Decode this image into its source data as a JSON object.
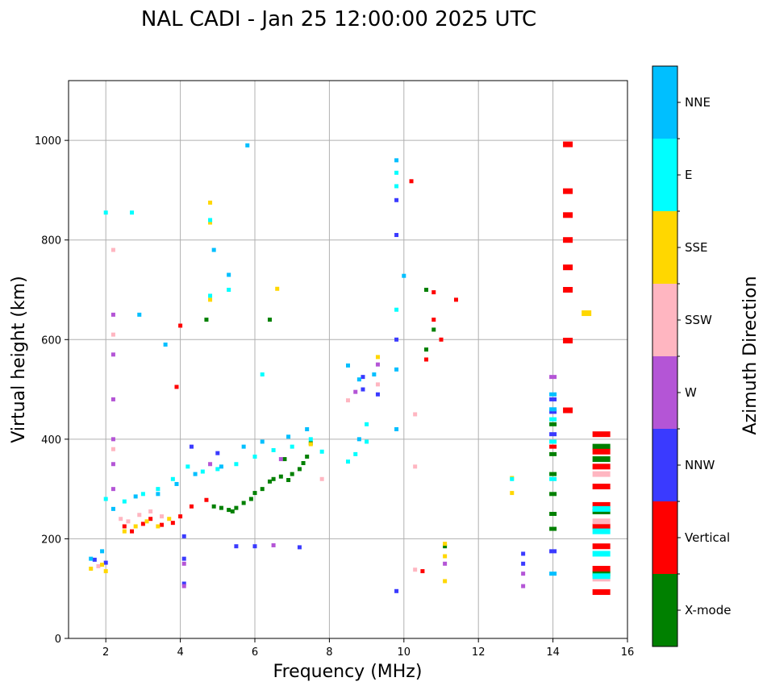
{
  "chart_data": {
    "type": "scatter",
    "title": "NAL CADI - Jan 25 12:00:00 2025 UTC",
    "xlabel": "Frequency (MHz)",
    "ylabel": "Virtual height (km)",
    "xlim": [
      1,
      16
    ],
    "ylim": [
      0,
      1120
    ],
    "xticks": [
      2,
      4,
      6,
      8,
      10,
      12,
      14,
      16
    ],
    "yticks": [
      0,
      200,
      400,
      600,
      800,
      1000
    ],
    "grid": true,
    "colorbar": {
      "label": "Azimuth Direction",
      "categories": [
        {
          "name": "X-mode",
          "color": "#008000"
        },
        {
          "name": "Vertical",
          "color": "#ff0000"
        },
        {
          "name": "NNW",
          "color": "#3a3aff"
        },
        {
          "name": "W",
          "color": "#b455d6"
        },
        {
          "name": "SSW",
          "color": "#ffb6c1"
        },
        {
          "name": "SSE",
          "color": "#ffd700"
        },
        {
          "name": "E",
          "color": "#00ffff"
        },
        {
          "name": "NNE",
          "color": "#00bfff"
        }
      ]
    },
    "series": [
      {
        "name": "X-mode",
        "points": [
          [
            4.9,
            265
          ],
          [
            5.1,
            262
          ],
          [
            5.3,
            258
          ],
          [
            5.5,
            262
          ],
          [
            5.7,
            272
          ],
          [
            5.9,
            280
          ],
          [
            6.0,
            292
          ],
          [
            6.2,
            300
          ],
          [
            6.4,
            315
          ],
          [
            6.5,
            320
          ],
          [
            6.7,
            325
          ],
          [
            6.9,
            318
          ],
          [
            7.0,
            330
          ],
          [
            7.2,
            340
          ],
          [
            7.4,
            365
          ],
          [
            7.5,
            392
          ],
          [
            7.3,
            352
          ],
          [
            6.8,
            360
          ],
          [
            5.4,
            255
          ],
          [
            14.0,
            220
          ],
          [
            14.0,
            250
          ],
          [
            14.0,
            290
          ],
          [
            14.0,
            330
          ],
          [
            14.0,
            370
          ],
          [
            14.0,
            430
          ],
          [
            15.3,
            385
          ],
          [
            15.3,
            360
          ],
          [
            15.3,
            255
          ],
          [
            15.3,
            130
          ],
          [
            11.1,
            185
          ],
          [
            10.8,
            620
          ],
          [
            10.6,
            580
          ],
          [
            4.7,
            640
          ],
          [
            6.4,
            640
          ],
          [
            10.6,
            700
          ]
        ]
      },
      {
        "name": "Vertical",
        "points": [
          [
            2.5,
            225
          ],
          [
            2.7,
            215
          ],
          [
            3.0,
            230
          ],
          [
            3.2,
            240
          ],
          [
            3.5,
            228
          ],
          [
            3.8,
            232
          ],
          [
            4.0,
            245
          ],
          [
            4.3,
            265
          ],
          [
            4.7,
            278
          ],
          [
            4.0,
            628
          ],
          [
            3.9,
            505
          ],
          [
            14.4,
            992
          ],
          [
            14.4,
            898
          ],
          [
            14.4,
            850
          ],
          [
            14.4,
            800
          ],
          [
            14.4,
            745
          ],
          [
            14.4,
            700
          ],
          [
            14.4,
            598
          ],
          [
            14.4,
            458
          ],
          [
            15.3,
            410
          ],
          [
            15.3,
            375
          ],
          [
            15.3,
            345
          ],
          [
            15.3,
            305
          ],
          [
            15.3,
            268
          ],
          [
            15.3,
            225
          ],
          [
            15.3,
            185
          ],
          [
            15.3,
            140
          ],
          [
            15.3,
            93
          ],
          [
            10.8,
            695
          ],
          [
            10.8,
            640
          ],
          [
            10.6,
            560
          ],
          [
            11.4,
            680
          ],
          [
            11.0,
            600
          ],
          [
            14.0,
            385
          ],
          [
            10.5,
            135
          ],
          [
            10.2,
            918
          ]
        ]
      },
      {
        "name": "NNW",
        "points": [
          [
            1.7,
            158
          ],
          [
            2.0,
            152
          ],
          [
            4.1,
            160
          ],
          [
            4.1,
            110
          ],
          [
            4.1,
            205
          ],
          [
            5.5,
            185
          ],
          [
            6.0,
            185
          ],
          [
            7.2,
            183
          ],
          [
            8.9,
            525
          ],
          [
            8.9,
            500
          ],
          [
            9.3,
            490
          ],
          [
            14.0,
            480
          ],
          [
            14.0,
            455
          ],
          [
            14.0,
            410
          ],
          [
            14.0,
            175
          ],
          [
            13.2,
            170
          ],
          [
            13.2,
            150
          ],
          [
            9.8,
            95
          ],
          [
            9.8,
            880
          ],
          [
            9.8,
            810
          ],
          [
            9.8,
            600
          ],
          [
            4.3,
            385
          ],
          [
            5.0,
            372
          ]
        ]
      },
      {
        "name": "W",
        "points": [
          [
            2.2,
            650
          ],
          [
            2.2,
            570
          ],
          [
            2.2,
            480
          ],
          [
            2.2,
            400
          ],
          [
            2.2,
            350
          ],
          [
            2.2,
            300
          ],
          [
            4.1,
            150
          ],
          [
            4.1,
            105
          ],
          [
            6.5,
            187
          ],
          [
            13.2,
            130
          ],
          [
            13.2,
            105
          ],
          [
            14.0,
            525
          ],
          [
            9.3,
            550
          ],
          [
            8.7,
            495
          ],
          [
            11.1,
            150
          ],
          [
            4.8,
            350
          ],
          [
            6.7,
            360
          ]
        ]
      },
      {
        "name": "SSW",
        "points": [
          [
            1.8,
            145
          ],
          [
            2.4,
            240
          ],
          [
            2.6,
            235
          ],
          [
            2.9,
            248
          ],
          [
            3.2,
            255
          ],
          [
            3.5,
            245
          ],
          [
            2.2,
            610
          ],
          [
            2.2,
            780
          ],
          [
            2.2,
            380
          ],
          [
            7.8,
            320
          ],
          [
            15.3,
            330
          ],
          [
            15.3,
            235
          ],
          [
            15.3,
            120
          ],
          [
            10.3,
            345
          ],
          [
            10.3,
            450
          ],
          [
            10.3,
            138
          ],
          [
            9.3,
            510
          ],
          [
            8.5,
            478
          ]
        ]
      },
      {
        "name": "SSE",
        "points": [
          [
            1.6,
            140
          ],
          [
            1.9,
            148
          ],
          [
            2.0,
            135
          ],
          [
            2.5,
            215
          ],
          [
            2.8,
            225
          ],
          [
            3.1,
            235
          ],
          [
            3.4,
            225
          ],
          [
            3.7,
            240
          ],
          [
            4.8,
            875
          ],
          [
            4.8,
            835
          ],
          [
            4.8,
            680
          ],
          [
            12.9,
            292
          ],
          [
            12.9,
            322
          ],
          [
            14.9,
            653
          ],
          [
            11.1,
            115
          ],
          [
            11.1,
            190
          ],
          [
            11.1,
            165
          ],
          [
            9.3,
            565
          ],
          [
            7.5,
            390
          ],
          [
            6.6,
            702
          ]
        ]
      },
      {
        "name": "E",
        "points": [
          [
            2.0,
            280
          ],
          [
            2.5,
            275
          ],
          [
            3.0,
            290
          ],
          [
            3.4,
            300
          ],
          [
            3.8,
            320
          ],
          [
            4.2,
            345
          ],
          [
            4.6,
            335
          ],
          [
            5.0,
            340
          ],
          [
            5.5,
            350
          ],
          [
            6.0,
            365
          ],
          [
            6.5,
            378
          ],
          [
            7.0,
            385
          ],
          [
            7.5,
            400
          ],
          [
            7.8,
            375
          ],
          [
            8.5,
            355
          ],
          [
            8.7,
            370
          ],
          [
            9.0,
            395
          ],
          [
            9.0,
            430
          ],
          [
            2.0,
            855
          ],
          [
            2.7,
            855
          ],
          [
            4.8,
            688
          ],
          [
            4.8,
            840
          ],
          [
            14.0,
            440
          ],
          [
            14.0,
            395
          ],
          [
            14.0,
            320
          ],
          [
            15.3,
            260
          ],
          [
            15.3,
            215
          ],
          [
            15.3,
            170
          ],
          [
            15.3,
            125
          ],
          [
            9.8,
            908
          ],
          [
            9.8,
            935
          ],
          [
            9.8,
            660
          ],
          [
            12.9,
            320
          ],
          [
            5.3,
            700
          ],
          [
            6.2,
            530
          ]
        ]
      },
      {
        "name": "NNE",
        "points": [
          [
            1.6,
            160
          ],
          [
            1.9,
            175
          ],
          [
            2.2,
            260
          ],
          [
            2.8,
            285
          ],
          [
            3.4,
            290
          ],
          [
            3.9,
            310
          ],
          [
            4.4,
            330
          ],
          [
            5.1,
            345
          ],
          [
            5.7,
            385
          ],
          [
            6.2,
            395
          ],
          [
            6.9,
            405
          ],
          [
            7.4,
            420
          ],
          [
            8.8,
            520
          ],
          [
            8.5,
            548
          ],
          [
            9.2,
            530
          ],
          [
            8.8,
            400
          ],
          [
            2.9,
            650
          ],
          [
            3.6,
            590
          ],
          [
            4.9,
            780
          ],
          [
            5.3,
            730
          ],
          [
            14.0,
            490
          ],
          [
            14.0,
            460
          ],
          [
            14.0,
            130
          ],
          [
            9.8,
            420
          ],
          [
            9.8,
            540
          ],
          [
            9.8,
            960
          ],
          [
            10.0,
            728
          ],
          [
            5.8,
            990
          ]
        ]
      }
    ]
  }
}
